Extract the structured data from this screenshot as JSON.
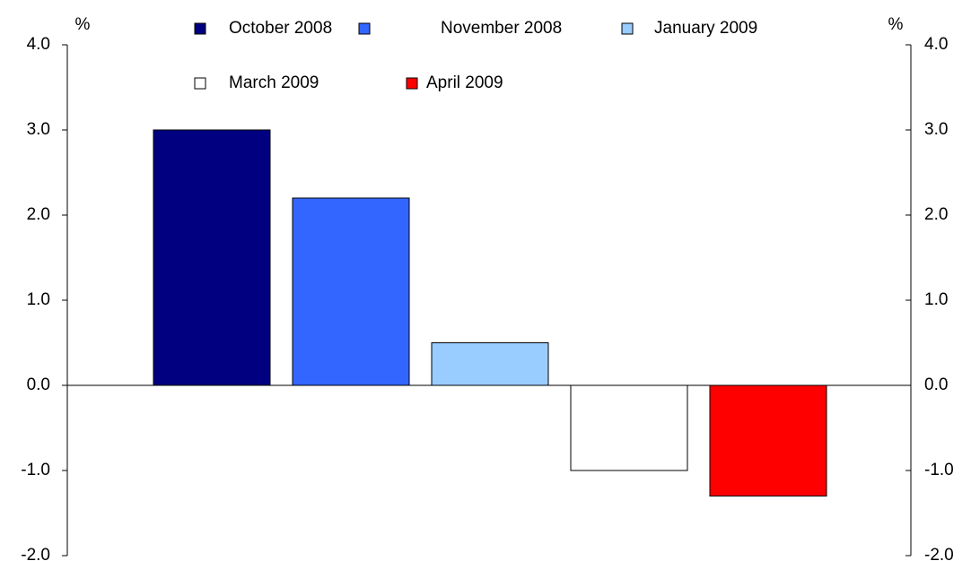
{
  "chart_data": {
    "type": "bar",
    "y_label": "%",
    "y2_label": "%",
    "series": [
      {
        "name": "October 2008",
        "color": "#000080",
        "values": [
          3.0
        ]
      },
      {
        "name": "November 2008",
        "color": "#3366ff",
        "values": [
          2.2
        ]
      },
      {
        "name": "January 2009",
        "color": "#99ccff",
        "values": [
          0.5
        ]
      },
      {
        "name": "March 2009",
        "color": "#ffffff",
        "values": [
          -1.0
        ]
      },
      {
        "name": "April 2009",
        "color": "#ff0000",
        "values": [
          -1.3
        ]
      }
    ],
    "ylim": [
      -2,
      4
    ],
    "yticks": [
      {
        "value": -2,
        "label": "-2.0"
      },
      {
        "value": -1,
        "label": "-1.0"
      },
      {
        "value": 0,
        "label": "0.0"
      },
      {
        "value": 1,
        "label": "1.0"
      },
      {
        "value": 2,
        "label": "2.0"
      },
      {
        "value": 3,
        "label": "3.0"
      },
      {
        "value": 4,
        "label": "4.0"
      }
    ],
    "y2lim": [
      -2,
      4
    ],
    "y2ticks": [
      {
        "value": -2,
        "label": "-2.0"
      },
      {
        "value": -1,
        "label": "-1.0"
      },
      {
        "value": 0,
        "label": "0.0"
      },
      {
        "value": 1,
        "label": "1.0"
      },
      {
        "value": 2,
        "label": "2.0"
      },
      {
        "value": 3,
        "label": "3.0"
      },
      {
        "value": 4,
        "label": "4.0"
      }
    ]
  }
}
